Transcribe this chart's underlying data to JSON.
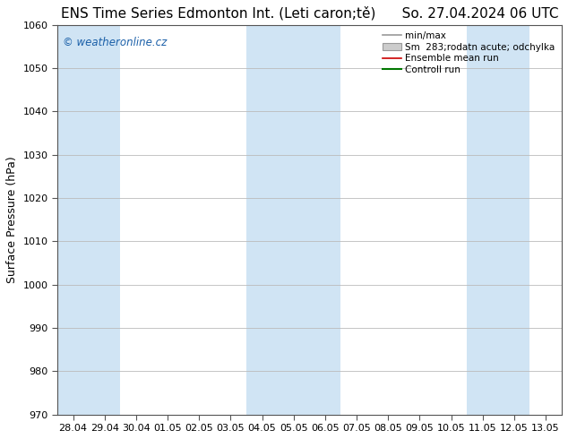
{
  "title_left": "ENS Time Series Edmonton Int. (Leti caron;tě)",
  "title_right": "So. 27.04.2024 06 UTC",
  "ylabel": "Surface Pressure (hPa)",
  "ylim": [
    970,
    1060
  ],
  "yticks": [
    970,
    980,
    990,
    1000,
    1010,
    1020,
    1030,
    1040,
    1050,
    1060
  ],
  "xlabels": [
    "28.04",
    "29.04",
    "30.04",
    "01.05",
    "02.05",
    "03.05",
    "04.05",
    "05.05",
    "06.05",
    "07.05",
    "08.05",
    "09.05",
    "10.05",
    "11.05",
    "12.05",
    "13.05"
  ],
  "plot_bg": "#ffffff",
  "blue_band_color": "#d0e4f4",
  "blue_band_indices": [
    0,
    1,
    6,
    7,
    8,
    13,
    14
  ],
  "legend_items": [
    "min/max",
    "Sm  283;rodatn acute; odchylka",
    "Ensemble mean run",
    "Controll run"
  ],
  "legend_line_color": "#999999",
  "legend_box_color": "#cccccc",
  "legend_red": "#cc0000",
  "legend_green": "#007700",
  "watermark": "© weatheronline.cz",
  "watermark_color": "#1a5fa8",
  "title_fontsize": 11,
  "axis_label_fontsize": 9,
  "tick_fontsize": 8,
  "legend_fontsize": 7.5,
  "grid_color": "#bbbbbb",
  "spine_color": "#555555"
}
